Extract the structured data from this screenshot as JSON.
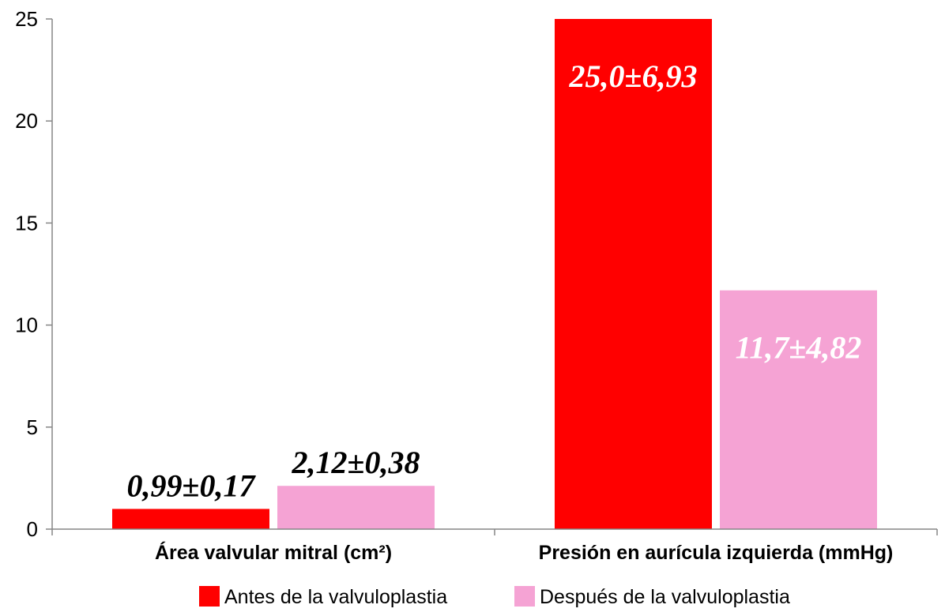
{
  "chart_data": {
    "type": "bar",
    "categories": [
      "Área valvular mitral (cm²)",
      "Presión en aurícula izquierda (mmHg)"
    ],
    "series": [
      {
        "name": "Antes de la valvuloplastia",
        "values": [
          0.99,
          25.0
        ],
        "labels": [
          "0,99±0,17",
          "25,0±6,93"
        ],
        "color": "#ff0000",
        "label_colors": [
          "#000000",
          "#ffffff"
        ]
      },
      {
        "name": "Después de la valvuloplastia",
        "values": [
          2.12,
          11.7
        ],
        "labels": [
          "2,12±0,38",
          "11,7±4,82"
        ],
        "color": "#f5a3d4",
        "label_colors": [
          "#000000",
          "#ffffff"
        ]
      }
    ],
    "ylim": [
      0,
      25
    ],
    "yticks": [
      "0",
      "5",
      "10",
      "15",
      "20",
      "25"
    ],
    "ytick_values": [
      0,
      5,
      10,
      15,
      20,
      25
    ],
    "grid": false,
    "legend_position": "bottom"
  }
}
